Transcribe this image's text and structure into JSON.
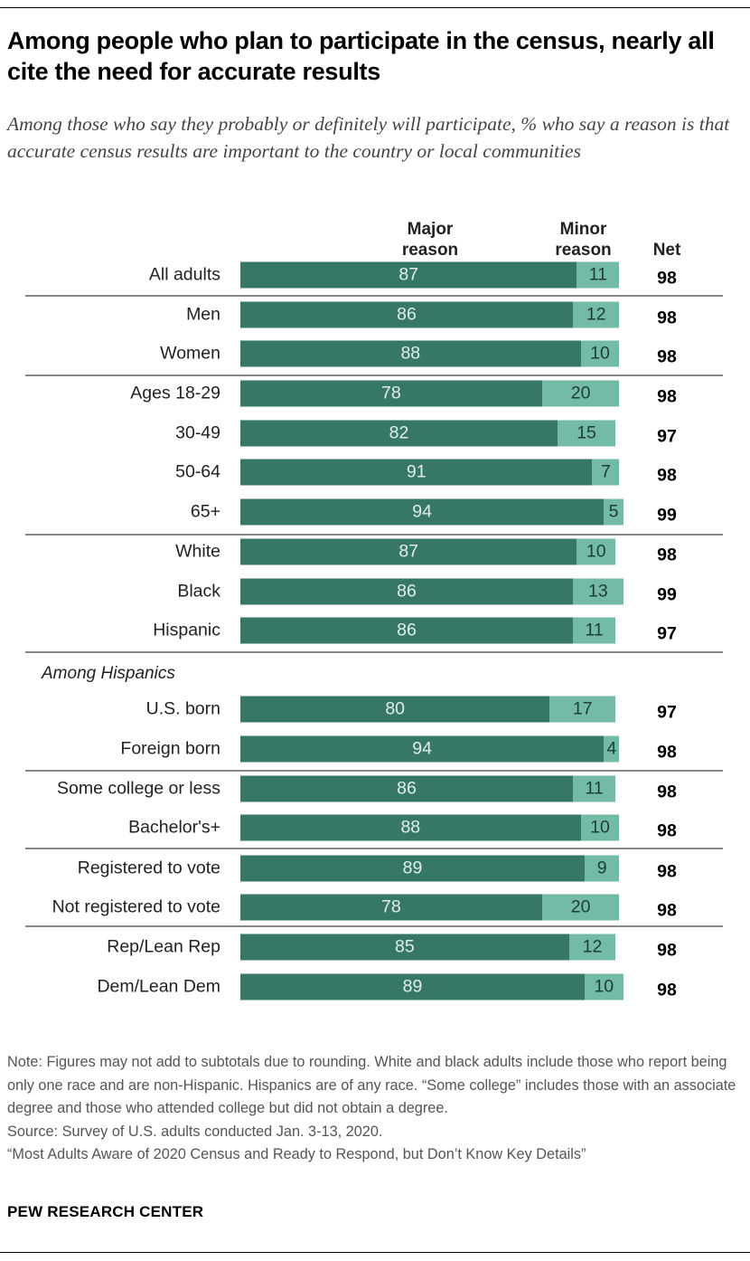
{
  "title": "Among people who plan to participate in the census, nearly all cite the need for accurate results",
  "subtitle": "Among those who say they probably or definitely will participate, % who say a reason is that accurate census results are important to the country or local communities",
  "chart_data": {
    "type": "bar",
    "orientation": "horizontal",
    "stacked": true,
    "headers": {
      "major": "Major reason",
      "minor": "Minor reason",
      "net": "Net"
    },
    "colors": {
      "major": "#377766",
      "minor": "#74bba7"
    },
    "rows": [
      {
        "label": "All adults",
        "major": 87,
        "minor": 11,
        "net": 98
      },
      {
        "label": "Men",
        "major": 86,
        "minor": 12,
        "net": 98
      },
      {
        "label": "Women",
        "major": 88,
        "minor": 10,
        "net": 98
      },
      {
        "label": "Ages 18-29",
        "major": 78,
        "minor": 20,
        "net": 98
      },
      {
        "label": "30-49",
        "major": 82,
        "minor": 15,
        "net": 97
      },
      {
        "label": "50-64",
        "major": 91,
        "minor": 7,
        "net": 98
      },
      {
        "label": "65+",
        "major": 94,
        "minor": 5,
        "net": 99
      },
      {
        "label": "White",
        "major": 87,
        "minor": 10,
        "net": 98
      },
      {
        "label": "Black",
        "major": 86,
        "minor": 13,
        "net": 99
      },
      {
        "label": "Hispanic",
        "major": 86,
        "minor": 11,
        "net": 97
      },
      {
        "group": "Among Hispanics"
      },
      {
        "label": "U.S. born",
        "major": 80,
        "minor": 17,
        "net": 97
      },
      {
        "label": "Foreign born",
        "major": 94,
        "minor": 4,
        "net": 98
      },
      {
        "label": "Some college or less",
        "major": 86,
        "minor": 11,
        "net": 98
      },
      {
        "label": "Bachelor's+",
        "major": 88,
        "minor": 10,
        "net": 98
      },
      {
        "label": "Registered to vote",
        "major": 89,
        "minor": 9,
        "net": 98
      },
      {
        "label": "Not registered to vote",
        "major": 78,
        "minor": 20,
        "net": 98
      },
      {
        "label": "Rep/Lean Rep",
        "major": 85,
        "minor": 12,
        "net": 98
      },
      {
        "label": "Dem/Lean Dem",
        "major": 89,
        "minor": 10,
        "net": 98
      }
    ]
  },
  "notes": [
    "Note: Figures may not add to subtotals due to rounding. White and black adults include those who report being only one race and are non-Hispanic. Hispanics are of any race. “Some college” includes those with an associate degree and those who attended college but did not obtain a degree.",
    "Source: Survey of U.S. adults conducted Jan. 3-13, 2020.",
    "“Most Adults Aware of 2020 Census and Ready to Respond, but Don’t Know Key Details”"
  ],
  "brand": "PEW RESEARCH CENTER"
}
